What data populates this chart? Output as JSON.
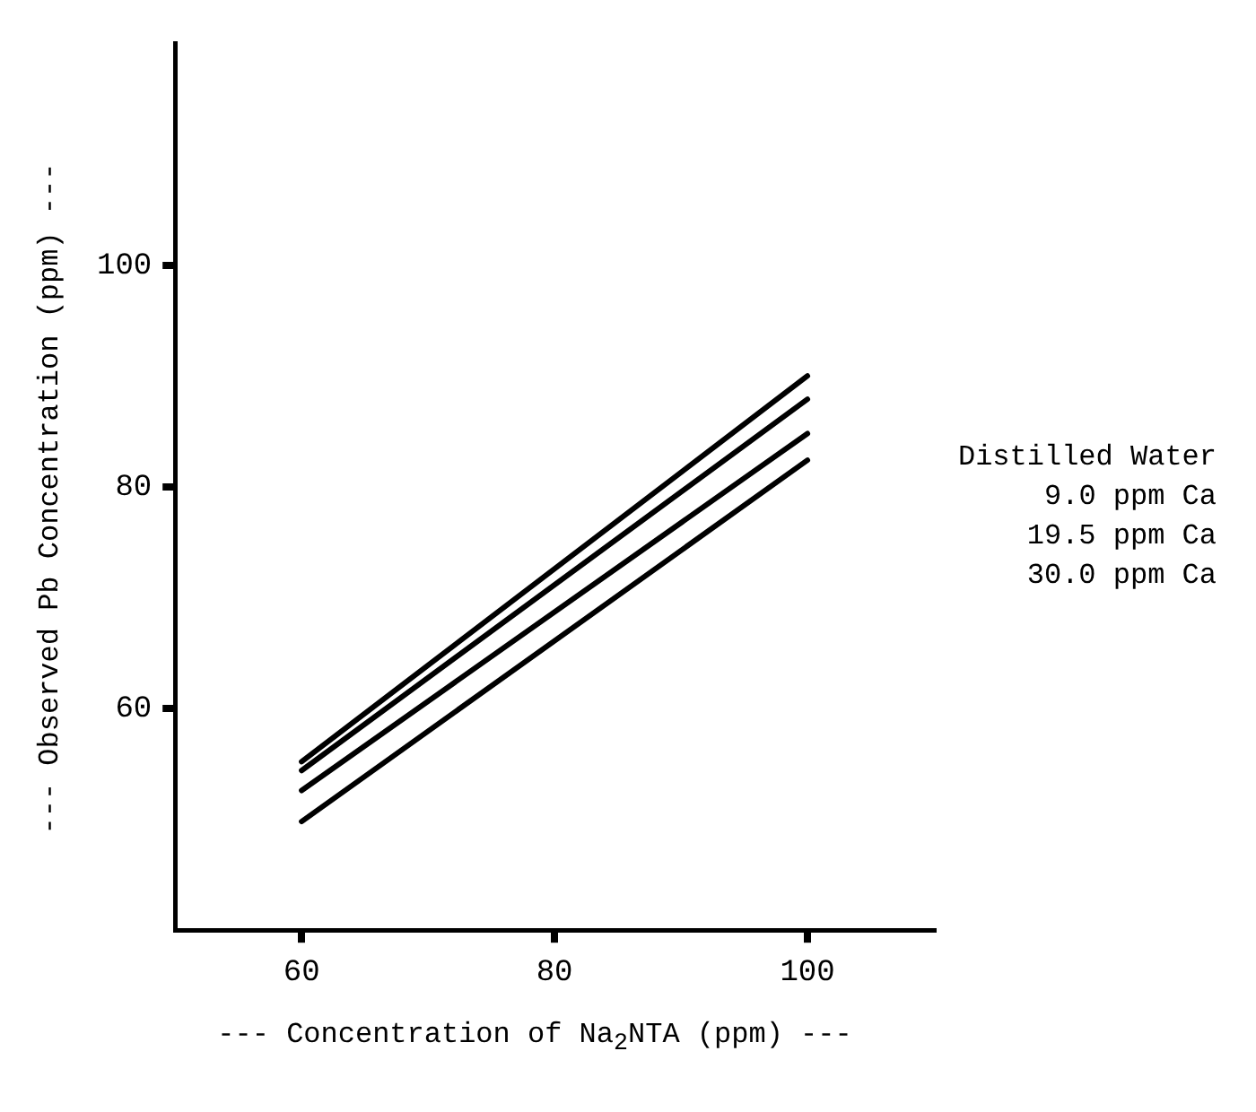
{
  "chart_data": {
    "type": "line",
    "xlabel": "--- Concentration of Na$_{2}$NTA (ppm) ---",
    "ylabel": "--- Observed Pb Concentration (ppm) ---",
    "x": [
      60,
      100
    ],
    "series": [
      {
        "name": "Distilled Water",
        "color": "#000000",
        "values": [
          55.2,
          90.0
        ]
      },
      {
        "name": "9.0 ppm Ca",
        "color": "#000000",
        "values": [
          54.4,
          87.9
        ]
      },
      {
        "name": "19.5 ppm Ca",
        "color": "#000000",
        "values": [
          52.6,
          84.8
        ]
      },
      {
        "name": "30.0 ppm Ca",
        "color": "#000000",
        "values": [
          49.8,
          82.4
        ]
      }
    ],
    "xlim": [
      50,
      110
    ],
    "xticks": [
      60,
      80,
      100
    ],
    "ylim": [
      40,
      120
    ],
    "yticks": [
      60,
      80,
      100
    ],
    "grid": false,
    "legend": "right",
    "marker": "none",
    "line_style": "solid"
  }
}
